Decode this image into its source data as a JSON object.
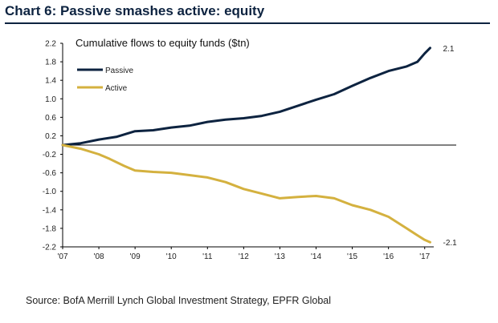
{
  "header": {
    "title": "Chart 6: Passive smashes active: equity"
  },
  "footer": {
    "source": "Source: BofA Merrill Lynch Global Investment Strategy, EPFR Global"
  },
  "chart_data": {
    "type": "line",
    "title": "Cumulative flows to equity funds ($tn)",
    "xlabel": "",
    "ylabel": "",
    "xlim": [
      2007,
      2017.25
    ],
    "ylim": [
      -2.2,
      2.2
    ],
    "x_ticks": [
      "'07",
      "'08",
      "'09",
      "'10",
      "'11",
      "'12",
      "'13",
      "'14",
      "'15",
      "'16",
      "'17"
    ],
    "y_ticks": [
      "2.2",
      "1.8",
      "1.4",
      "1.0",
      "0.6",
      "0.2",
      "-0.2",
      "-0.6",
      "-1.0",
      "-1.4",
      "-1.8",
      "-2.2"
    ],
    "legend_position": "top-left",
    "grid": false,
    "zero_line": true,
    "series": [
      {
        "name": "Passive",
        "color": "#0d2340",
        "end_label": "2.1",
        "x": [
          2007,
          2007.5,
          2008,
          2008.5,
          2009,
          2009.5,
          2010,
          2010.5,
          2011,
          2011.5,
          2012,
          2012.5,
          2013,
          2013.5,
          2014,
          2014.5,
          2015,
          2015.5,
          2016,
          2016.5,
          2016.8,
          2017.0,
          2017.15
        ],
        "values": [
          0.0,
          0.04,
          0.12,
          0.18,
          0.3,
          0.32,
          0.38,
          0.42,
          0.5,
          0.55,
          0.58,
          0.63,
          0.72,
          0.85,
          0.98,
          1.1,
          1.28,
          1.45,
          1.6,
          1.7,
          1.8,
          1.98,
          2.1
        ]
      },
      {
        "name": "Active",
        "color": "#d4b13f",
        "end_label": "-2.1",
        "x": [
          2007,
          2007.5,
          2008,
          2008.3,
          2008.7,
          2009,
          2009.5,
          2010,
          2010.5,
          2011,
          2011.5,
          2012,
          2012.5,
          2013,
          2013.5,
          2014,
          2014.5,
          2015,
          2015.5,
          2016,
          2016.5,
          2016.8,
          2017.0,
          2017.15
        ],
        "values": [
          0.0,
          -0.08,
          -0.2,
          -0.3,
          -0.45,
          -0.55,
          -0.58,
          -0.6,
          -0.65,
          -0.7,
          -0.8,
          -0.95,
          -1.05,
          -1.15,
          -1.12,
          -1.1,
          -1.15,
          -1.3,
          -1.4,
          -1.55,
          -1.8,
          -1.95,
          -2.05,
          -2.1
        ]
      }
    ]
  }
}
